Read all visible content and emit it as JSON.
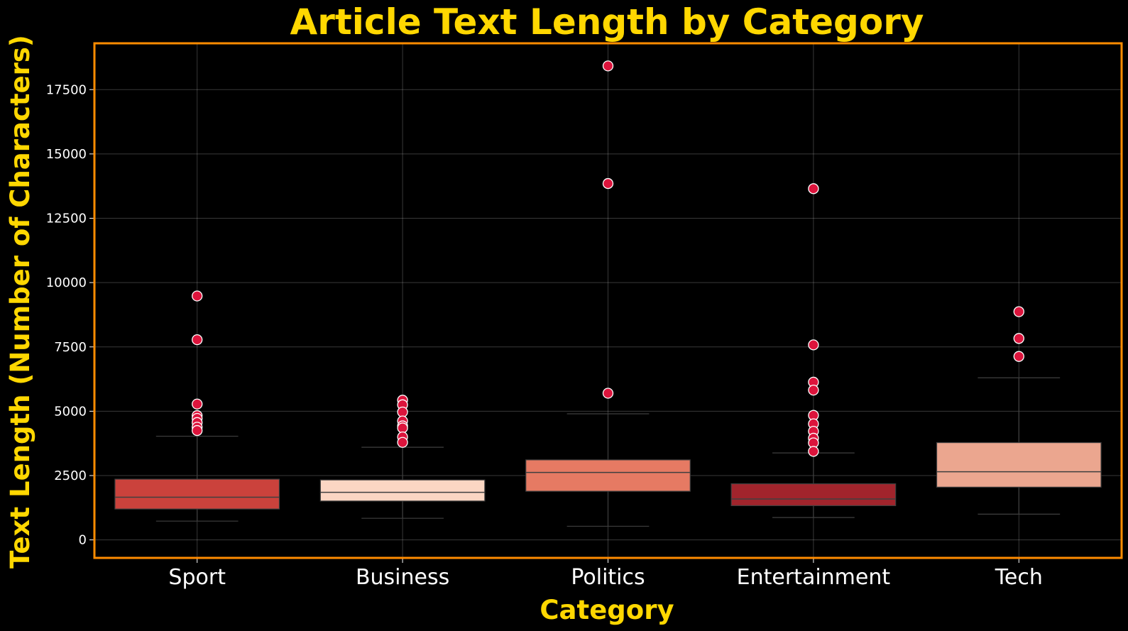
{
  "chart_data": {
    "type": "box",
    "title": "Article Text Length by Category",
    "xlabel": "Category",
    "ylabel": "Text Length (Number of Characters)",
    "ylim": [
      -700,
      19300
    ],
    "yticks": [
      0,
      2500,
      5000,
      7500,
      10000,
      12500,
      15000,
      17500
    ],
    "grid": true,
    "categories": [
      "Sport",
      "Business",
      "Politics",
      "Entertainment",
      "Tech"
    ],
    "boxes": [
      {
        "category": "Sport",
        "whisker_low": 730,
        "q1": 1200,
        "median": 1660,
        "q3": 2360,
        "whisker_high": 4030,
        "color": "#CB423C",
        "outliers": [
          9480,
          7780,
          5280,
          4830,
          4720,
          4560,
          4380,
          4250
        ]
      },
      {
        "category": "Business",
        "whisker_low": 840,
        "q1": 1510,
        "median": 1850,
        "q3": 2330,
        "whisker_high": 3600,
        "color": "#FBD6C3",
        "outliers": [
          5430,
          5250,
          4970,
          4620,
          4430,
          4350,
          4000,
          3790
        ]
      },
      {
        "category": "Politics",
        "whisker_low": 530,
        "q1": 1890,
        "median": 2620,
        "q3": 3110,
        "whisker_high": 4900,
        "color": "#E67A63",
        "outliers": [
          18420,
          13850,
          5700
        ]
      },
      {
        "category": "Entertainment",
        "whisker_low": 870,
        "q1": 1330,
        "median": 1590,
        "q3": 2180,
        "whisker_high": 3380,
        "color": "#A1242C",
        "outliers": [
          13650,
          7580,
          6130,
          5820,
          4840,
          4510,
          4220,
          3950,
          3770,
          3440
        ]
      },
      {
        "category": "Tech",
        "whisker_low": 1000,
        "q1": 2050,
        "median": 2650,
        "q3": 3780,
        "whisker_high": 6300,
        "color": "#EBA68F",
        "outliers": [
          8870,
          7830,
          7130
        ]
      }
    ],
    "outlier_color": "#DC143C",
    "frame_color": "#FF8C00"
  }
}
